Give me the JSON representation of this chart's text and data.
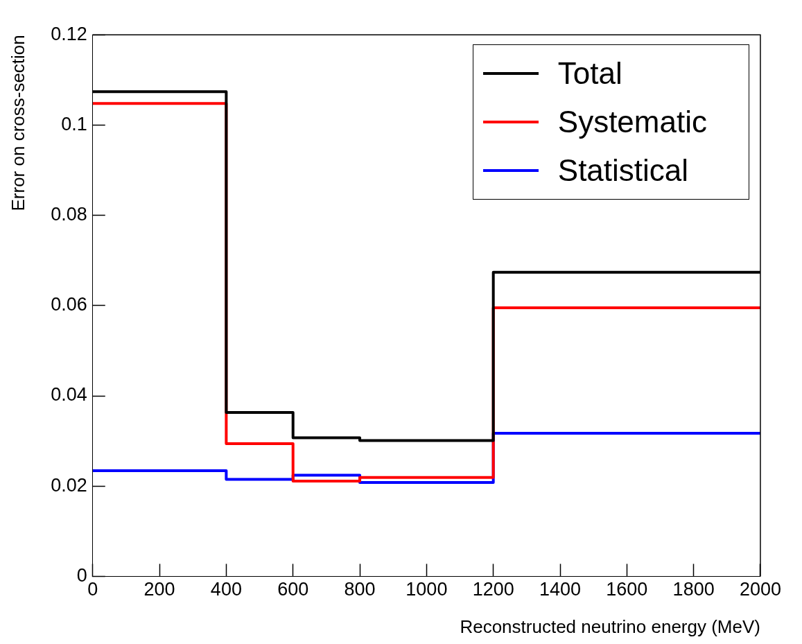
{
  "chart_data": {
    "type": "step",
    "xlabel": "Reconstructed neutrino energy (MeV)",
    "ylabel": "Error on cross-section",
    "x": [
      0,
      400,
      600,
      800,
      1200,
      2000
    ],
    "series": [
      {
        "name": "Total",
        "color": "#000000",
        "values": [
          0.1074,
          0.0363,
          0.0307,
          0.0301,
          0.0674,
          0.0674
        ]
      },
      {
        "name": "Systematic",
        "color": "#ff0000",
        "values": [
          0.1048,
          0.0294,
          0.0211,
          0.0219,
          0.0595,
          0.0595
        ]
      },
      {
        "name": "Statistical",
        "color": "#0000ff",
        "values": [
          0.0234,
          0.0215,
          0.0224,
          0.0208,
          0.0317,
          0.0317
        ]
      }
    ],
    "xlim": [
      0,
      2000
    ],
    "xticks": [
      0,
      200,
      400,
      600,
      800,
      1000,
      1200,
      1400,
      1600,
      1800,
      2000
    ],
    "ylim": [
      0,
      0.12
    ],
    "yticks": [
      0,
      0.02,
      0.04,
      0.06,
      0.08,
      0.1,
      0.12
    ],
    "grid": false,
    "legend": "top right"
  }
}
